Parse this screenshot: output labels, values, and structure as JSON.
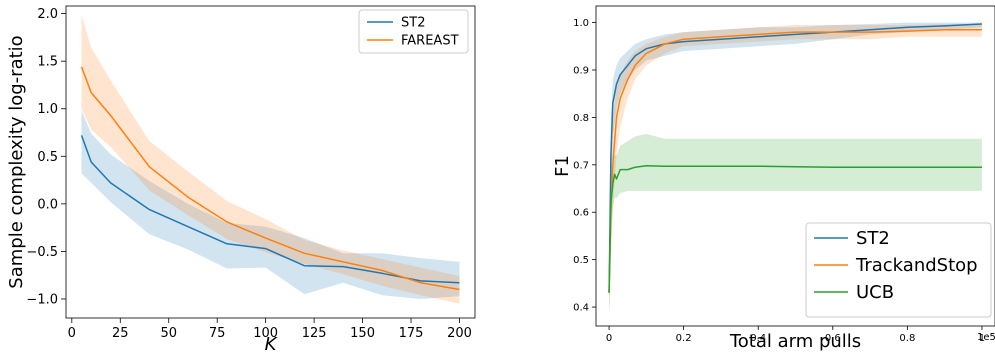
{
  "chart_data": [
    {
      "type": "line",
      "title": "",
      "xlabel": "K",
      "ylabel": "Sample complexity log-ratio",
      "xlim": [
        -3,
        208
      ],
      "ylim": [
        -1.2,
        2.08
      ],
      "xticks": [
        0,
        25,
        50,
        75,
        100,
        125,
        150,
        175,
        200
      ],
      "yticks": [
        -1.0,
        -0.5,
        0.0,
        0.5,
        1.0,
        1.5,
        2.0
      ],
      "ytick_labels": [
        "−1.0",
        "−0.5",
        "0.0",
        "0.5",
        "1.0",
        "1.5",
        "2.0"
      ],
      "grid": false,
      "legend": "top-right",
      "series": [
        {
          "name": "ST2",
          "color": "#1f77b4",
          "x": [
            5,
            10,
            20,
            40,
            60,
            80,
            100,
            120,
            140,
            160,
            180,
            200
          ],
          "y": [
            0.72,
            0.44,
            0.22,
            -0.06,
            -0.24,
            -0.42,
            -0.47,
            -0.65,
            -0.66,
            -0.73,
            -0.81,
            -0.83
          ],
          "lower": [
            0.32,
            0.22,
            0.02,
            -0.32,
            -0.48,
            -0.68,
            -0.67,
            -0.95,
            -0.83,
            -0.96,
            -1.0,
            -0.97
          ],
          "upper": [
            0.98,
            0.74,
            0.52,
            0.24,
            0.0,
            -0.2,
            -0.24,
            -0.36,
            -0.52,
            -0.52,
            -0.57,
            -0.61
          ]
        },
        {
          "name": "FAREAST",
          "color": "#ff7f0e",
          "x": [
            5,
            10,
            20,
            40,
            60,
            80,
            100,
            120,
            140,
            160,
            180,
            200
          ],
          "y": [
            1.44,
            1.17,
            0.93,
            0.39,
            0.07,
            -0.19,
            -0.36,
            -0.52,
            -0.61,
            -0.7,
            -0.83,
            -0.9
          ],
          "lower": [
            1.0,
            0.78,
            0.6,
            0.14,
            -0.12,
            -0.37,
            -0.51,
            -0.63,
            -0.74,
            -0.86,
            -0.96,
            -1.05
          ],
          "upper": [
            1.99,
            1.64,
            1.3,
            0.66,
            0.34,
            0.03,
            -0.16,
            -0.38,
            -0.49,
            -0.58,
            -0.67,
            -0.76
          ]
        }
      ]
    },
    {
      "type": "line",
      "title": "",
      "xlabel": "Total arm pulls",
      "ylabel": "F1",
      "axis_offset_label": "1e5",
      "xlim": [
        -0.035,
        1.035
      ],
      "ylim": [
        0.36,
        1.035
      ],
      "xticks": [
        0.0,
        0.2,
        0.4,
        0.6,
        0.8,
        1.0
      ],
      "yticks": [
        0.4,
        0.5,
        0.6,
        0.7,
        0.8,
        0.9,
        1.0
      ],
      "grid": false,
      "legend": "bottom-right",
      "series": [
        {
          "name": "ST2",
          "color": "#1f77b4",
          "x": [
            0.0,
            0.005,
            0.01,
            0.02,
            0.03,
            0.05,
            0.07,
            0.1,
            0.15,
            0.2,
            0.3,
            0.4,
            0.5,
            0.6,
            0.7,
            0.8,
            0.9,
            1.0
          ],
          "y": [
            0.43,
            0.72,
            0.83,
            0.87,
            0.89,
            0.91,
            0.93,
            0.945,
            0.955,
            0.96,
            0.965,
            0.97,
            0.975,
            0.98,
            0.985,
            0.99,
            0.993,
            0.997
          ],
          "lower": [
            0.38,
            0.6,
            0.76,
            0.82,
            0.85,
            0.88,
            0.9,
            0.92,
            0.93,
            0.94,
            0.945,
            0.95,
            0.955,
            0.965,
            0.975,
            0.98,
            0.985,
            0.99
          ],
          "upper": [
            0.48,
            0.8,
            0.88,
            0.91,
            0.925,
            0.94,
            0.955,
            0.965,
            0.975,
            0.98,
            0.985,
            0.99,
            0.99,
            0.995,
            0.997,
            1.0,
            1.0,
            1.0
          ]
        },
        {
          "name": "TrackandStop",
          "color": "#ff7f0e",
          "x": [
            0.0,
            0.005,
            0.01,
            0.02,
            0.03,
            0.05,
            0.07,
            0.1,
            0.15,
            0.2,
            0.3,
            0.4,
            0.5,
            0.6,
            0.7,
            0.8,
            0.9,
            1.0
          ],
          "y": [
            0.43,
            0.6,
            0.7,
            0.8,
            0.84,
            0.88,
            0.91,
            0.935,
            0.955,
            0.965,
            0.97,
            0.975,
            0.98,
            0.98,
            0.98,
            0.982,
            0.985,
            0.985
          ],
          "lower": [
            0.38,
            0.5,
            0.6,
            0.72,
            0.78,
            0.84,
            0.88,
            0.91,
            0.935,
            0.95,
            0.955,
            0.96,
            0.965,
            0.965,
            0.965,
            0.97,
            0.97,
            0.97
          ],
          "upper": [
            0.48,
            0.7,
            0.8,
            0.86,
            0.89,
            0.92,
            0.94,
            0.955,
            0.97,
            0.98,
            0.985,
            0.99,
            0.995,
            0.995,
            0.995,
            0.995,
            0.997,
            0.997
          ]
        },
        {
          "name": "UCB",
          "color": "#2ca02c",
          "x": [
            0.0,
            0.005,
            0.01,
            0.015,
            0.02,
            0.03,
            0.05,
            0.07,
            0.1,
            0.15,
            0.2,
            0.3,
            0.4,
            0.5,
            0.6,
            0.7,
            0.8,
            0.9,
            1.0
          ],
          "y": [
            0.43,
            0.62,
            0.66,
            0.68,
            0.67,
            0.69,
            0.69,
            0.695,
            0.698,
            0.697,
            0.697,
            0.697,
            0.697,
            0.696,
            0.695,
            0.695,
            0.695,
            0.695,
            0.695
          ],
          "lower": [
            0.38,
            0.56,
            0.61,
            0.63,
            0.63,
            0.64,
            0.645,
            0.645,
            0.645,
            0.645,
            0.645,
            0.645,
            0.645,
            0.645,
            0.645,
            0.645,
            0.645,
            0.645,
            0.645
          ],
          "upper": [
            0.48,
            0.68,
            0.71,
            0.72,
            0.72,
            0.74,
            0.75,
            0.76,
            0.765,
            0.755,
            0.755,
            0.755,
            0.755,
            0.755,
            0.755,
            0.755,
            0.755,
            0.755,
            0.755
          ]
        }
      ]
    }
  ]
}
